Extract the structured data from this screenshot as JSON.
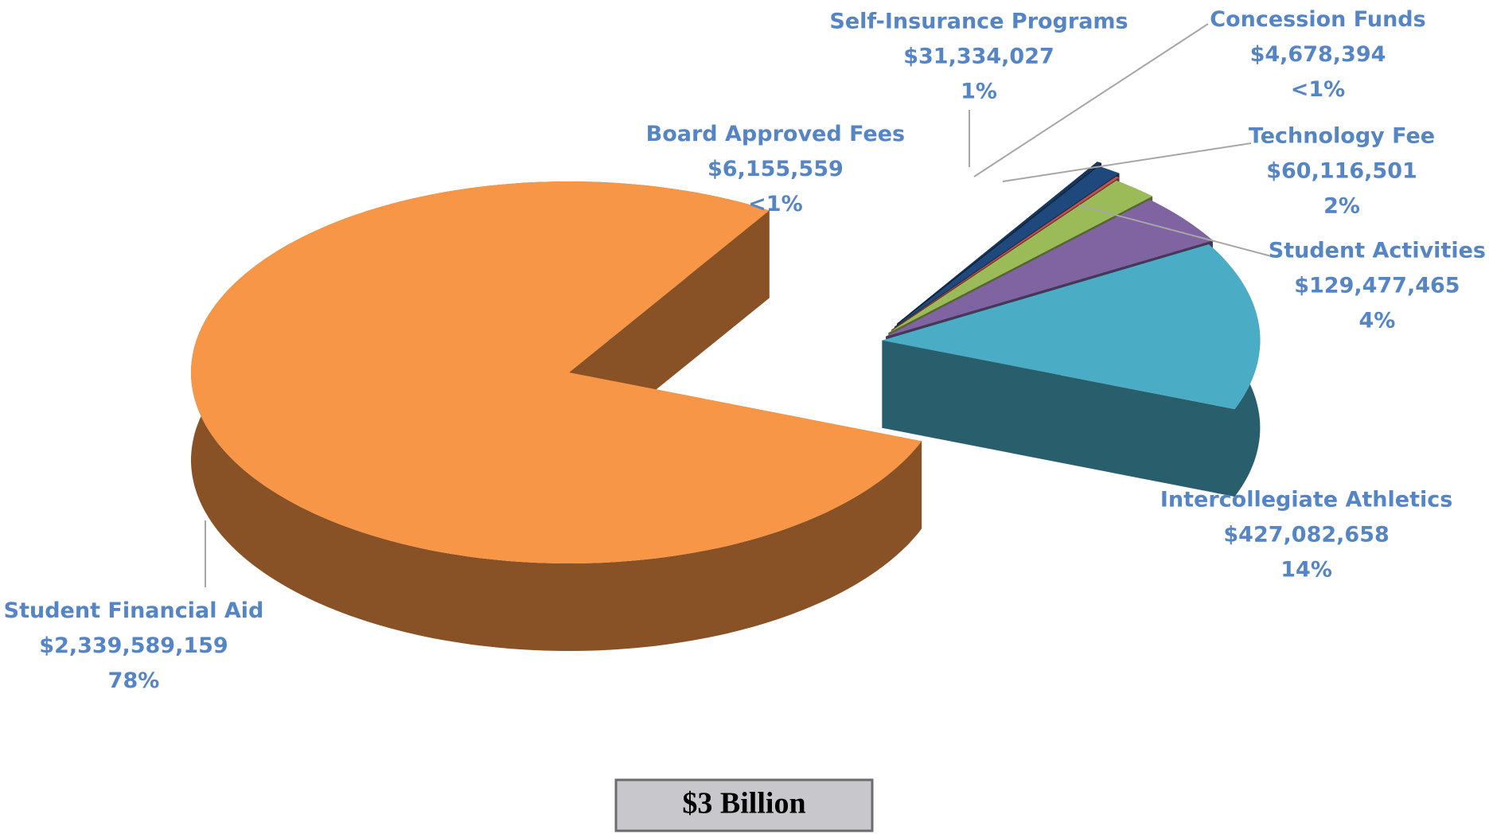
{
  "chart_data": {
    "type": "pie3d",
    "categories": [
      "Board Approved Fees",
      "Self-Insurance Programs",
      "Concession Funds",
      "Technology Fee",
      "Student Activities",
      "Intercollegiate Athletics",
      "Student Financial Aid"
    ],
    "values": [
      6155559,
      31334027,
      4678394,
      60116501,
      129477465,
      427082658,
      2339589159
    ],
    "value_labels": [
      "$6,155,559",
      "$31,334,027",
      "$4,678,394",
      "$60,116,501",
      "$129,477,465",
      "$427,082,658",
      "$2,339,589,159"
    ],
    "percent_labels": [
      "<1%",
      "1%",
      "<1%",
      "2%",
      "4%",
      "14%",
      "78%"
    ],
    "colors": [
      "#17375e",
      "#1f497d",
      "#c0504d",
      "#9bbb59",
      "#8064a2",
      "#4bacc6",
      "#f79646"
    ],
    "annotation": "$3 Billion"
  }
}
